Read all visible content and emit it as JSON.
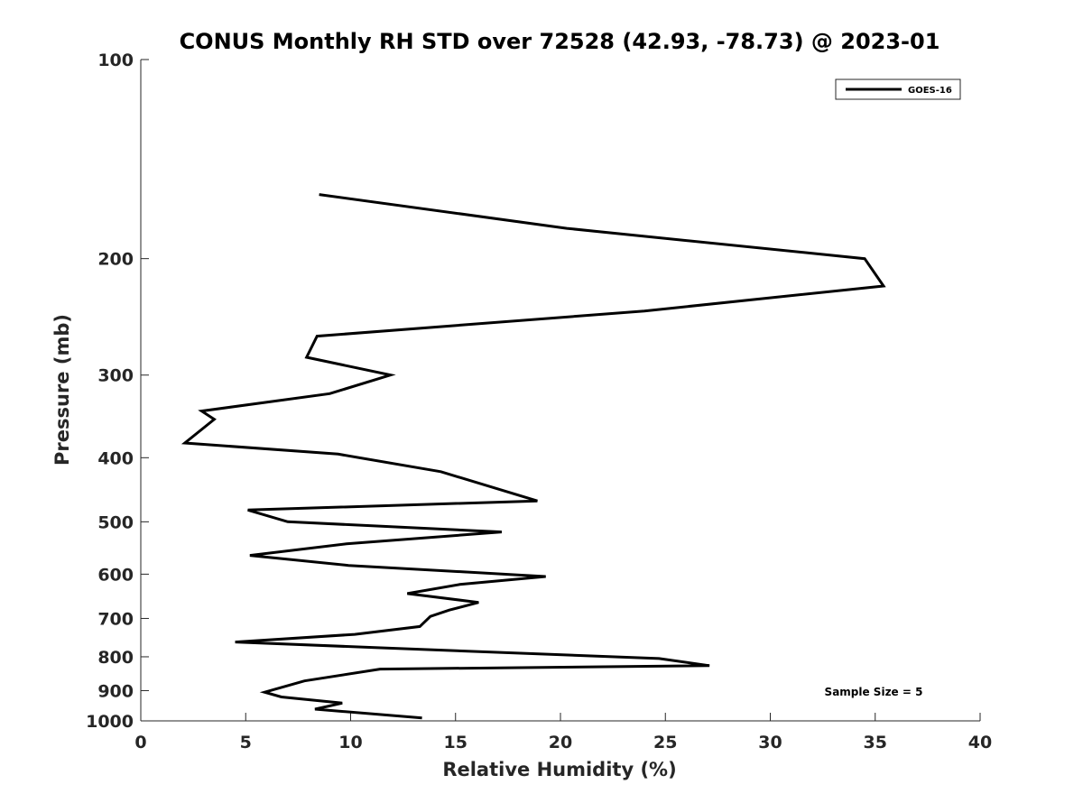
{
  "chart_data": {
    "type": "line",
    "title": "CONUS Monthly RH STD over 72528 (42.93, -78.73) @ 2023-01",
    "xlabel": "Relative Humidity (%)",
    "ylabel": "Pressure (mb)",
    "xlim": [
      0,
      40
    ],
    "ylim": [
      100,
      1000
    ],
    "yscale": "log",
    "yreversed": true,
    "grid": false,
    "legend_position": "top-right",
    "xticks": [
      0,
      5,
      10,
      15,
      20,
      25,
      30,
      35,
      40
    ],
    "yticks": [
      100,
      200,
      300,
      400,
      500,
      600,
      700,
      800,
      900,
      1000
    ],
    "annotation": "Sample Size = 5",
    "series": [
      {
        "name": "GOES-16",
        "color": "#000000",
        "x": [
          8.5,
          20.3,
          34.5,
          35.4,
          24.0,
          8.4,
          7.9,
          11.9,
          9.0,
          2.9,
          3.5,
          2.1,
          9.4,
          14.3,
          18.9,
          5.1,
          7.0,
          17.2,
          9.8,
          5.2,
          9.9,
          19.3,
          15.2,
          12.7,
          16.1,
          14.7,
          13.8,
          13.3,
          10.2,
          4.5,
          11.3,
          24.7,
          27.1,
          11.4,
          7.8,
          5.9,
          6.7,
          9.6,
          8.3,
          13.4
        ],
        "y": [
          160,
          180,
          200,
          220,
          240,
          262,
          282,
          300,
          320,
          340,
          350,
          380,
          395,
          420,
          465,
          480,
          500,
          518,
          540,
          562,
          582,
          605,
          622,
          642,
          662,
          680,
          695,
          720,
          740,
          760,
          775,
          805,
          825,
          835,
          870,
          905,
          920,
          940,
          960,
          990
        ]
      }
    ]
  }
}
